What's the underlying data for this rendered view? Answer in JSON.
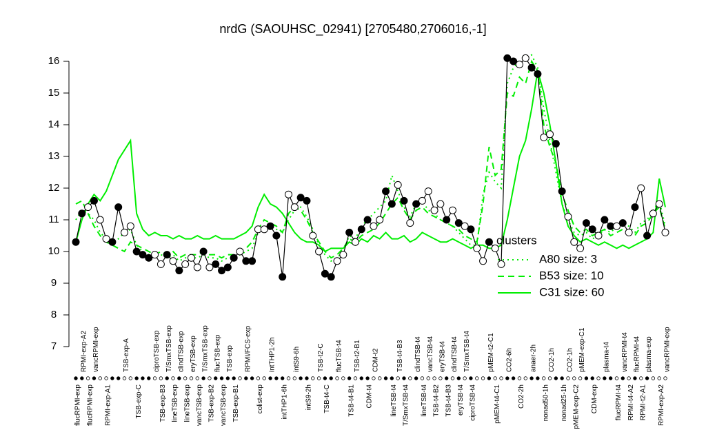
{
  "chart_data": {
    "type": "line",
    "title": "nrdG (SAOUHSC_02941) [2705480,2706016,-1]",
    "ylim": [
      7,
      16
    ],
    "yticks": [
      7,
      8,
      9,
      10,
      11,
      12,
      13,
      14,
      15,
      16
    ],
    "color": "#000000",
    "categories": [
      "flucRPMI-exp",
      "RPMI-exp-A2",
      "flucRPMI-exp",
      "vancRPMI-exp",
      null,
      "RPMI-exp-A1",
      null,
      null,
      "TSB-exp-A",
      null,
      "TSB-exp-C",
      null,
      null,
      "ciproTSB-exp",
      "TSB-exp-B3",
      "T/SmxTSB-exp",
      "lineTSB-exp",
      "clindTSB-exp",
      "lineTSB-exp",
      "eryTSB-exp",
      "vancTSB-exp",
      "T/SmxTSB-exp",
      "TSB-exp-B2",
      "flucTSB-exp",
      "vancTSB-exp",
      "TSB-exp",
      "TSB-exp-B1",
      null,
      "RPMI/FCS-exp",
      null,
      "colist-exp",
      null,
      "intTHP1-2h",
      null,
      "intTHP1-6h",
      null,
      "intS9-6h",
      null,
      "intS9-2h",
      null,
      "TSB-t2-C",
      "TSB-t4-C",
      null,
      "flucTSB-t4",
      null,
      "TSB-t4-B1",
      "TSB-t2-B1",
      null,
      "CDM-t4",
      "CDM-t2",
      null,
      null,
      "lineTSB-t4",
      "TSB-t4-B3",
      "T/SmxTSB-t4",
      null,
      "clindTSB-t4",
      "lineTSB-t4",
      "vancTSB-t4",
      "TSB-t4-B2",
      "eryTSB-t4",
      "TSB-t4-B3",
      "clindTSB-t4",
      "eryTSB-t4",
      "T/SmxTSB-t4",
      "ciproTSB-t4",
      null,
      null,
      "pMEM-t2-C1",
      "pMEM-t4-C1",
      null,
      "CO2-6h",
      null,
      "CO2-2h",
      null,
      "anaer-2h",
      null,
      "nonad50-1h",
      "CO2-1h",
      null,
      "nonad25-1h",
      "CO2-1h",
      "pMEM-exp-C2",
      "pMEM-exp-C1",
      null,
      "CDM-exp",
      null,
      "plasma-t4",
      null,
      "flucRPMI-t4",
      "vancRPMI-t4",
      "RPMI-t4-A2",
      "flucRPMI-t4",
      "RPMI-t2-A1",
      "plasma-exp",
      null,
      "RPMI-exp-A2",
      "vancRPMI-exp"
    ],
    "values": [
      10.3,
      11.2,
      11.4,
      11.6,
      11.0,
      10.4,
      10.3,
      11.4,
      10.6,
      10.8,
      10.0,
      9.9,
      9.8,
      9.9,
      9.6,
      9.9,
      9.7,
      9.4,
      9.6,
      9.8,
      9.5,
      10.0,
      9.5,
      9.6,
      9.4,
      9.5,
      9.8,
      10.0,
      9.7,
      9.7,
      10.7,
      10.7,
      10.8,
      10.5,
      9.2,
      11.8,
      11.4,
      11.7,
      11.6,
      10.5,
      10.0,
      9.3,
      9.2,
      9.7,
      9.9,
      10.6,
      10.3,
      10.7,
      11.0,
      10.8,
      11.0,
      11.9,
      11.5,
      12.1,
      11.6,
      10.9,
      11.5,
      11.6,
      11.9,
      11.3,
      11.5,
      11.0,
      11.3,
      10.9,
      10.8,
      10.7,
      10.1,
      9.7,
      10.3,
      10.1,
      9.6,
      16.1,
      16.0,
      15.9,
      16.1,
      15.8,
      15.6,
      13.6,
      13.7,
      13.4,
      11.9,
      11.1,
      10.3,
      10.1,
      10.9,
      10.7,
      10.5,
      11.0,
      10.8,
      10.8,
      10.9,
      10.6,
      11.4,
      12.0,
      10.5,
      11.2,
      11.5,
      10.6
    ],
    "filled": [
      true,
      true,
      false,
      true,
      false,
      false,
      true,
      true,
      false,
      false,
      true,
      true,
      true,
      false,
      false,
      true,
      false,
      true,
      false,
      false,
      false,
      true,
      false,
      true,
      true,
      true,
      true,
      false,
      true,
      true,
      false,
      false,
      true,
      true,
      true,
      false,
      false,
      true,
      true,
      false,
      false,
      true,
      true,
      false,
      false,
      true,
      false,
      true,
      true,
      false,
      false,
      true,
      true,
      false,
      true,
      false,
      true,
      false,
      false,
      false,
      false,
      true,
      false,
      true,
      false,
      true,
      false,
      false,
      true,
      false,
      false,
      true,
      true,
      false,
      false,
      true,
      true,
      false,
      false,
      true,
      true,
      false,
      false,
      false,
      true,
      true,
      false,
      true,
      true,
      false,
      true,
      false,
      true,
      false,
      true,
      false,
      false,
      false
    ],
    "legend_title": "clusters",
    "series": [
      {
        "name": "A80 size: 3",
        "color": "#00ee00",
        "linestyle": "dotted",
        "values": [
          11.0,
          11.3,
          11.2,
          11.0,
          10.6,
          10.4,
          10.3,
          10.4,
          10.6,
          10.7,
          10.2,
          10.0,
          9.9,
          9.8,
          9.9,
          9.8,
          9.9,
          9.7,
          9.8,
          9.8,
          9.8,
          9.9,
          9.8,
          9.8,
          9.7,
          9.8,
          9.8,
          9.9,
          10.0,
          10.1,
          10.6,
          10.8,
          10.8,
          10.7,
          10.6,
          11.0,
          11.3,
          11.4,
          11.1,
          10.7,
          10.2,
          9.9,
          9.7,
          9.8,
          10.0,
          10.5,
          10.4,
          10.8,
          11.0,
          11.2,
          11.4,
          11.6,
          12.4,
          11.9,
          11.4,
          11.1,
          11.5,
          11.6,
          11.3,
          11.2,
          11.0,
          10.9,
          10.8,
          10.6,
          10.4,
          10.2,
          10.2,
          11.8,
          12.5,
          12.2,
          12.0,
          15.3,
          15.8,
          16.0,
          16.1,
          16.2,
          15.8,
          14.5,
          13.5,
          12.5,
          11.5,
          11.0,
          10.6,
          10.5,
          10.6,
          10.4,
          10.5,
          10.7,
          10.6,
          10.8,
          10.9,
          10.8,
          10.6,
          10.9,
          11.0,
          11.3,
          11.6,
          10.8
        ]
      },
      {
        "name": "B53 size: 10",
        "color": "#00ee00",
        "linestyle": "dashed",
        "values": [
          11.5,
          11.6,
          11.2,
          10.8,
          10.5,
          10.3,
          10.2,
          10.1,
          10.0,
          10.3,
          10.2,
          10.1,
          10.0,
          9.9,
          10.0,
          9.9,
          10.0,
          9.8,
          9.9,
          9.9,
          9.9,
          10.0,
          9.9,
          9.9,
          9.8,
          9.9,
          9.9,
          10.0,
          10.1,
          10.3,
          10.7,
          11.0,
          10.9,
          10.8,
          10.6,
          11.2,
          11.4,
          11.3,
          11.0,
          10.6,
          10.3,
          10.0,
          9.8,
          9.9,
          10.1,
          10.4,
          10.3,
          10.5,
          10.6,
          10.7,
          10.9,
          11.2,
          11.5,
          11.7,
          11.3,
          11.0,
          11.3,
          11.4,
          11.2,
          11.1,
          11.0,
          10.9,
          10.8,
          10.7,
          10.5,
          10.4,
          10.3,
          11.5,
          13.3,
          12.4,
          12.6,
          15.0,
          14.9,
          15.5,
          15.3,
          16.0,
          15.7,
          14.0,
          13.3,
          12.8,
          11.8,
          11.3,
          10.8,
          10.6,
          10.7,
          10.5,
          10.6,
          10.7,
          10.5,
          10.6,
          10.7,
          10.6,
          10.5,
          10.8,
          10.9,
          11.2,
          11.4,
          10.7
        ]
      },
      {
        "name": "C31 size: 60",
        "color": "#00ee00",
        "linestyle": "solid",
        "values": [
          10.3,
          11.0,
          11.5,
          11.8,
          11.6,
          11.9,
          12.4,
          12.9,
          13.2,
          13.5,
          11.2,
          10.7,
          10.5,
          10.6,
          10.5,
          10.5,
          10.4,
          10.5,
          10.4,
          10.4,
          10.5,
          10.4,
          10.4,
          10.5,
          10.4,
          10.4,
          10.4,
          10.5,
          10.6,
          10.8,
          11.4,
          11.8,
          11.5,
          11.4,
          11.2,
          10.9,
          10.6,
          10.4,
          10.3,
          10.3,
          10.2,
          10.0,
          10.1,
          10.1,
          10.1,
          10.3,
          10.2,
          10.4,
          10.3,
          10.5,
          10.4,
          10.6,
          10.4,
          10.4,
          10.5,
          10.3,
          10.4,
          10.6,
          10.5,
          10.4,
          10.3,
          10.3,
          10.4,
          10.3,
          10.2,
          10.1,
          10.2,
          10.2,
          10.1,
          10.1,
          10.2,
          11.0,
          12.0,
          13.0,
          13.5,
          14.5,
          15.7,
          15.0,
          14.0,
          12.8,
          11.5,
          10.8,
          10.5,
          10.3,
          10.4,
          10.3,
          10.2,
          10.3,
          10.2,
          10.1,
          10.2,
          10.1,
          10.2,
          10.3,
          10.4,
          10.6,
          12.3,
          11.4
        ]
      }
    ]
  }
}
